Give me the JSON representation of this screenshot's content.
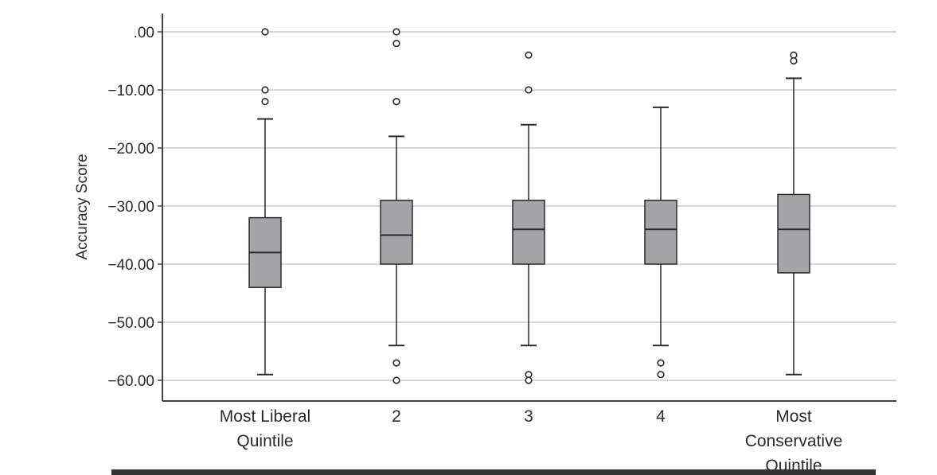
{
  "chart_data": {
    "type": "box",
    "ylabel": "Accuracy Score",
    "xlabel": "",
    "ylim": [
      -63.5,
      3.5
    ],
    "yticks": [
      {
        "value": 0,
        "label": ".00"
      },
      {
        "value": -10,
        "label": "−10.00"
      },
      {
        "value": -20,
        "label": "−20.00"
      },
      {
        "value": -30,
        "label": "−30.00"
      },
      {
        "value": -40,
        "label": "−40.00"
      },
      {
        "value": -50,
        "label": "−50.00"
      },
      {
        "value": -60,
        "label": "−60.00"
      }
    ],
    "grid": true,
    "colors": {
      "box_fill": "#a3a3a8",
      "stroke": "#2b2b2b",
      "grid": "#cccccc",
      "axis": "#444444"
    },
    "categories": [
      [
        "Most Liberal",
        "Quintile"
      ],
      [
        "2"
      ],
      [
        "3"
      ],
      [
        "4"
      ],
      [
        "Most",
        "Conservative",
        "Quintile"
      ]
    ],
    "boxes": [
      {
        "whisker_low": -59,
        "q1": -44,
        "median": -38,
        "q3": -32,
        "whisker_high": -15,
        "outliers": [
          0,
          -10,
          -12
        ]
      },
      {
        "whisker_low": -54,
        "q1": -40,
        "median": -35,
        "q3": -29,
        "whisker_high": -18,
        "outliers": [
          0,
          -2,
          -12,
          -12,
          -57,
          -60
        ]
      },
      {
        "whisker_low": -54,
        "q1": -40,
        "median": -34,
        "q3": -29,
        "whisker_high": -16,
        "outliers": [
          -4,
          -10,
          -59,
          -60
        ]
      },
      {
        "whisker_low": -54,
        "q1": -40,
        "median": -34,
        "q3": -29,
        "whisker_high": -13,
        "outliers": [
          -57,
          -59
        ]
      },
      {
        "whisker_low": -59,
        "q1": -41.5,
        "median": -34,
        "q3": -28,
        "whisker_high": -8,
        "outliers": [
          -4,
          -5
        ]
      }
    ]
  }
}
